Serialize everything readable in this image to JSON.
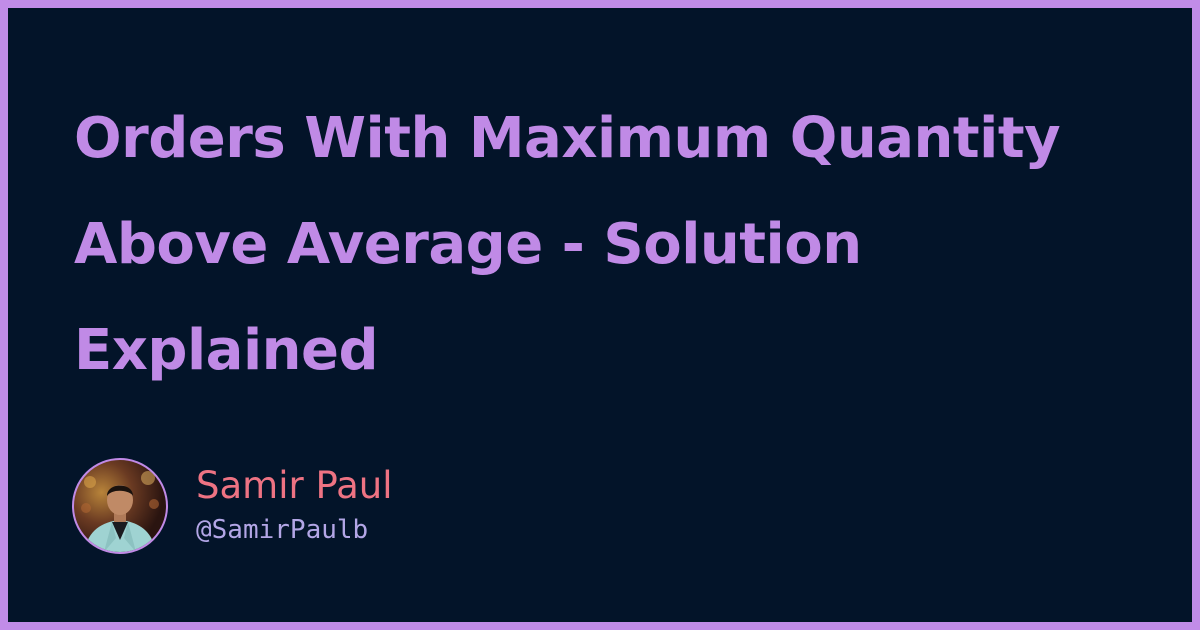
{
  "page": {
    "title": "Orders With Maximum Quantity Above Average - Solution Explained"
  },
  "author": {
    "name": "Samir Paul",
    "handle": "@SamirPaulb",
    "avatar_icon": "person-photo-avatar"
  },
  "colors": {
    "frame": "#c18ce8",
    "background": "#031429",
    "title": "#c08ae6",
    "name": "#ee7383",
    "handle": "#b3a6e6"
  }
}
